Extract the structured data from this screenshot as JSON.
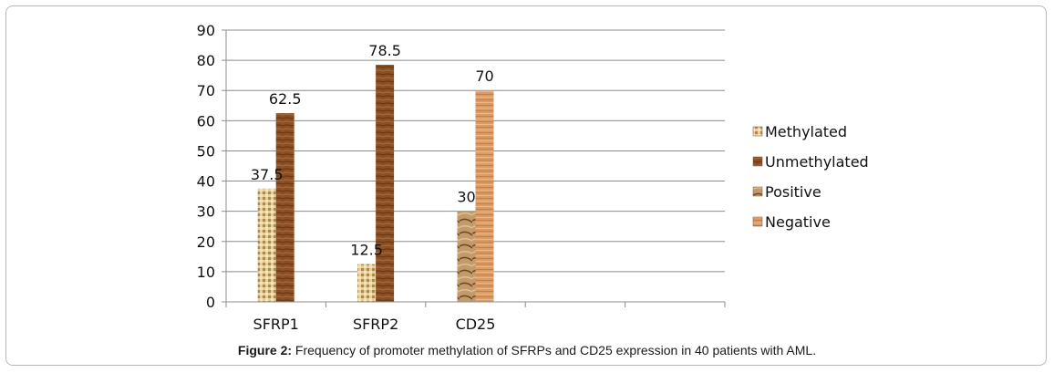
{
  "chart_data": {
    "type": "bar",
    "categories": [
      "SFRP1",
      "SFRP2",
      "CD25",
      "",
      ""
    ],
    "series": [
      {
        "name": "Methylated",
        "values": [
          37.5,
          12.5,
          null,
          null,
          null
        ],
        "color": "#d8c38e"
      },
      {
        "name": "Unmethylated",
        "values": [
          62.5,
          78.5,
          null,
          null,
          null
        ],
        "color": "#8a4f24"
      },
      {
        "name": "Positive",
        "values": [
          null,
          null,
          30,
          null,
          null
        ],
        "color": "#b58557"
      },
      {
        "name": "Negative",
        "values": [
          null,
          null,
          70,
          null,
          null
        ],
        "color": "#dd9b63"
      }
    ],
    "data_labels": [
      {
        "category": "SFRP1",
        "series": "Methylated",
        "text": "37.5"
      },
      {
        "category": "SFRP1",
        "series": "Unmethylated",
        "text": "62.5"
      },
      {
        "category": "SFRP2",
        "series": "Methylated",
        "text": "12.5"
      },
      {
        "category": "SFRP2",
        "series": "Unmethylated",
        "text": "78.5"
      },
      {
        "category": "CD25",
        "series": "Positive",
        "text": "30"
      },
      {
        "category": "CD25",
        "series": "Negative",
        "text": "70"
      }
    ],
    "ylim": [
      0,
      90
    ],
    "yticks": [
      0,
      10,
      20,
      30,
      40,
      50,
      60,
      70,
      80,
      90
    ],
    "grid": true,
    "legend_position": "right",
    "title": "",
    "xlabel": "",
    "ylabel": ""
  },
  "caption": {
    "label": "Figure 2:",
    "text": " Frequency of promoter methylation of SFRPs and CD25 expression in 40 patients with AML."
  }
}
